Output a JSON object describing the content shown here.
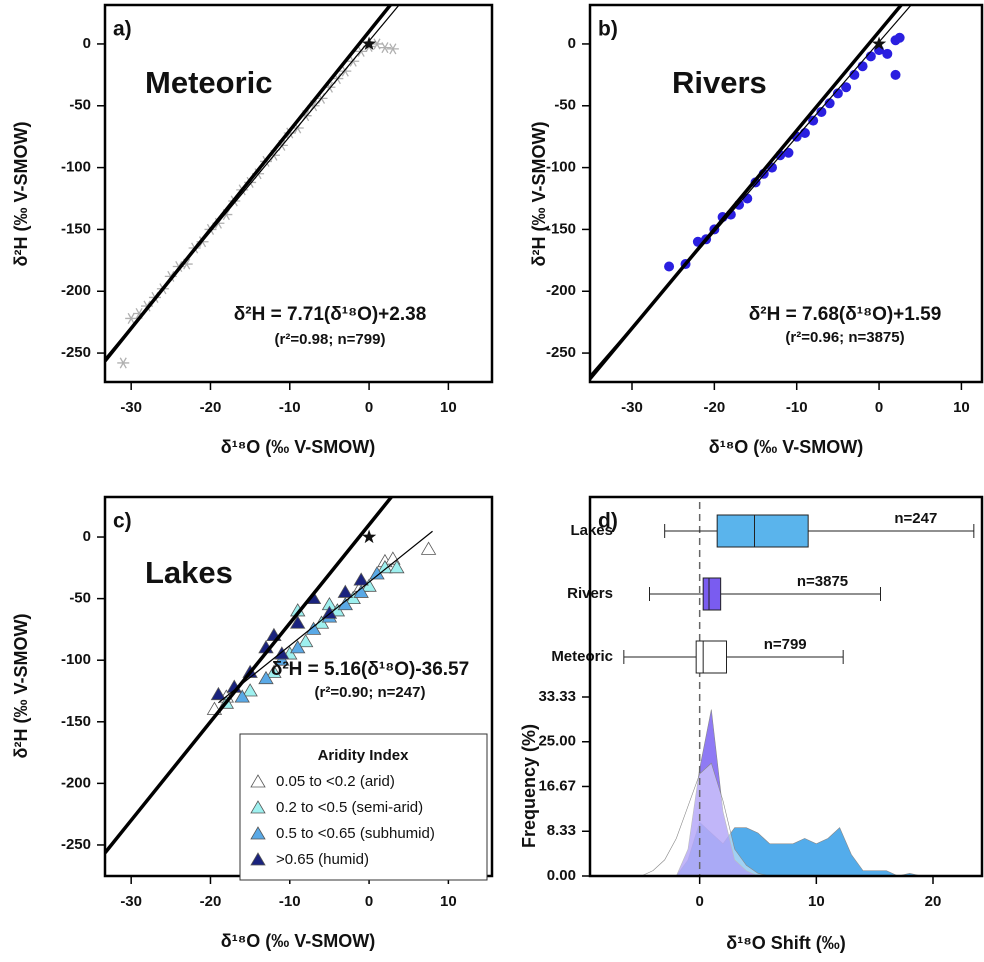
{
  "chart_data": [
    {
      "type": "scatter",
      "panel_label": "a)",
      "title": "Meteoric",
      "xlabel": "δ¹⁸O (‰ V-SMOW)",
      "ylabel": "δ²H (‰ V-SMOW)",
      "xlim": [
        -33.3,
        15.5
      ],
      "ylim": [
        -273.4,
        31.5
      ],
      "xticks": [
        -30,
        -20,
        -10,
        0,
        10
      ],
      "yticks": [
        -250,
        -200,
        -150,
        -100,
        -50,
        0
      ],
      "equation": "δ²H = 7.71(δ¹⁸O)+2.38",
      "stats": "(r²=0.98; n=799)",
      "fit": {
        "slope": 7.71,
        "intercept": 2.38
      },
      "reference_line": {
        "slope": 8,
        "intercept": 10
      },
      "marker_point": {
        "x": 0,
        "y": 0
      },
      "series": [
        {
          "color": "#b0b0b0",
          "marker": "flake",
          "x": [
            -31,
            -30,
            -29,
            -28,
            -27,
            -26,
            -25,
            -24,
            -23,
            -22,
            -21,
            -20,
            -19,
            -18,
            -17,
            -16,
            -15,
            -14,
            -13,
            -12,
            -11,
            -10,
            -9,
            -8,
            -7,
            -6,
            -5,
            -4,
            -3,
            -2,
            -1,
            0,
            1,
            2,
            3
          ],
          "values": [
            -258,
            -222,
            -218,
            -212,
            -205,
            -198,
            -188,
            -180,
            -178,
            -165,
            -160,
            -150,
            -145,
            -138,
            -127,
            -118,
            -112,
            -105,
            -95,
            -90,
            -82,
            -72,
            -68,
            -58,
            -50,
            -44,
            -35,
            -28,
            -22,
            -14,
            -6,
            -2,
            0,
            -3,
            -4
          ]
        }
      ]
    },
    {
      "type": "scatter",
      "panel_label": "b)",
      "title": "Rivers",
      "xlabel": "δ¹⁸O (‰ V-SMOW)",
      "ylabel": "δ²H (‰ V-SMOW)",
      "xlim": [
        -35.1,
        12.5
      ],
      "ylim": [
        -273.4,
        31.5
      ],
      "xticks": [
        -30,
        -20,
        -10,
        0,
        10
      ],
      "yticks": [
        -250,
        -200,
        -150,
        -100,
        -50,
        0
      ],
      "equation": "δ²H = 7.68(δ¹⁸O)+1.59",
      "stats": "(r²=0.96; n=3875)",
      "fit": {
        "slope": 7.68,
        "intercept": 1.59
      },
      "reference_line": {
        "slope": 8,
        "intercept": 10
      },
      "marker_point": {
        "x": 0,
        "y": 0
      },
      "series": [
        {
          "color": "#2a1fe0",
          "marker": "circle",
          "x": [
            -25.5,
            -23.5,
            -22,
            -21,
            -20,
            -19,
            -18,
            -17,
            -16,
            -15,
            -14,
            -13,
            -12,
            -11,
            -10,
            -9,
            -8,
            -7,
            -6,
            -5,
            -4,
            -3,
            -2,
            -1,
            0,
            1,
            2,
            2,
            2.5
          ],
          "values": [
            -180,
            -178,
            -160,
            -158,
            -150,
            -140,
            -138,
            -130,
            -125,
            -112,
            -105,
            -100,
            -90,
            -88,
            -75,
            -72,
            -62,
            -55,
            -48,
            -40,
            -35,
            -25,
            -18,
            -10,
            -5,
            -8,
            -25,
            3,
            5
          ]
        }
      ]
    },
    {
      "type": "scatter",
      "panel_label": "c)",
      "title": "Lakes",
      "xlabel": "δ¹⁸O (‰ V-SMOW)",
      "ylabel": "δ²H (‰ V-SMOW)",
      "xlim": [
        -33.3,
        15.5
      ],
      "ylim": [
        -275.2,
        32.5
      ],
      "xticks": [
        -30,
        -20,
        -10,
        0,
        10
      ],
      "yticks": [
        -250,
        -200,
        -150,
        -100,
        -50,
        0
      ],
      "equation": "δ²H = 5.16(δ¹⁸O)-36.57",
      "stats": "(r²=0.90; n=247)",
      "fit": {
        "slope": 5.16,
        "intercept": -36.57,
        "x_range": [
          -19,
          8
        ]
      },
      "reference_line": {
        "slope": 8,
        "intercept": 10
      },
      "marker_point": {
        "x": 0,
        "y": 0
      },
      "legend_title": "Aridity Index",
      "series": [
        {
          "name": "0.05 to <0.2 (arid)",
          "color": "#ffffff",
          "marker": "triangle",
          "x": [
            -19.5,
            -18,
            -1,
            2,
            3,
            7.5
          ],
          "values": [
            -140,
            -130,
            -40,
            -20,
            -18,
            -10
          ]
        },
        {
          "name": "0.2 to <0.5 (semi-arid)",
          "color": "#9ef0ef",
          "marker": "triangle",
          "x": [
            -18,
            -15,
            -12,
            -10,
            -9,
            -8,
            -6,
            -5,
            -4,
            -2,
            0,
            2,
            3.5
          ],
          "values": [
            -135,
            -125,
            -110,
            -95,
            -60,
            -85,
            -70,
            -55,
            -60,
            -50,
            -40,
            -25,
            -25
          ]
        },
        {
          "name": "0.5 to <0.65 (subhumid)",
          "color": "#5aa9e6",
          "marker": "triangle",
          "x": [
            -16,
            -13,
            -11,
            -9,
            -7,
            -5,
            -3,
            -1,
            1
          ],
          "values": [
            -130,
            -115,
            -100,
            -90,
            -75,
            -65,
            -55,
            -45,
            -30
          ]
        },
        {
          "name": ">0.65 (humid)",
          "color": "#1a237e",
          "marker": "triangle",
          "x": [
            -19,
            -17,
            -15,
            -13,
            -12,
            -11,
            -9,
            -7,
            -5,
            -3,
            -1
          ],
          "values": [
            -128,
            -122,
            -110,
            -90,
            -80,
            -95,
            -70,
            -50,
            -62,
            -45,
            -35
          ]
        }
      ]
    },
    {
      "type": "box_density",
      "panel_label": "d)",
      "xlabel": "δ¹⁸O Shift (‰)",
      "ylabel": "Frequency (%)",
      "xlim": [
        -9.4,
        24.2
      ],
      "xticks": [
        0,
        10,
        20
      ],
      "ylim": [
        0,
        33.33
      ],
      "yticks": [
        {
          "value": 0,
          "label": "0.00"
        },
        {
          "value": 8.33,
          "label": "8.33"
        },
        {
          "value": 16.67,
          "label": "16.67"
        },
        {
          "value": 25,
          "label": "25.00"
        },
        {
          "value": 33.33,
          "label": "33.33"
        }
      ],
      "reference_x": 0,
      "boxes": [
        {
          "name": "Lakes",
          "color": "#5ab4ec",
          "min": -3,
          "q1": 1.5,
          "median": 4.7,
          "q3": 9.3,
          "max": 23.5,
          "n_label": "n=247"
        },
        {
          "name": "Rivers",
          "color": "#7a5cf0",
          "min": -4.3,
          "q1": 0.3,
          "median": 0.8,
          "q3": 1.8,
          "max": 15.5,
          "n_label": "n=3875"
        },
        {
          "name": "Meteoric",
          "color": "#ffffff",
          "min": -6.5,
          "q1": -0.3,
          "median": 0.3,
          "q3": 2.3,
          "max": 12.3,
          "n_label": "n=799"
        }
      ],
      "series": [
        {
          "color": "#4aa8ea",
          "opacity": 0.95,
          "x": [
            -2,
            -1,
            0,
            1,
            2,
            3,
            4,
            5,
            6,
            7,
            8,
            9,
            10,
            11,
            12,
            13,
            14,
            15,
            16,
            17,
            18,
            19,
            20
          ],
          "values": [
            0,
            3,
            10,
            8,
            6,
            9,
            9,
            8,
            6,
            6,
            6,
            7,
            6,
            7,
            9,
            4,
            1,
            1,
            1,
            0,
            0.5,
            0,
            0
          ]
        },
        {
          "color": "#6a4ef0",
          "opacity": 0.75,
          "x": [
            -2,
            -1,
            0,
            1,
            2,
            3,
            4,
            5
          ],
          "values": [
            0,
            5,
            20,
            31,
            12,
            3,
            1,
            0
          ]
        },
        {
          "color": "#ffffff",
          "opacity": 0.45,
          "x": [
            -5,
            -4,
            -3,
            -2,
            -1,
            0,
            1,
            2,
            3,
            4,
            5,
            6
          ],
          "values": [
            0,
            1,
            3,
            7,
            13,
            19,
            21,
            14,
            5,
            2,
            0.5,
            0
          ]
        }
      ]
    }
  ]
}
